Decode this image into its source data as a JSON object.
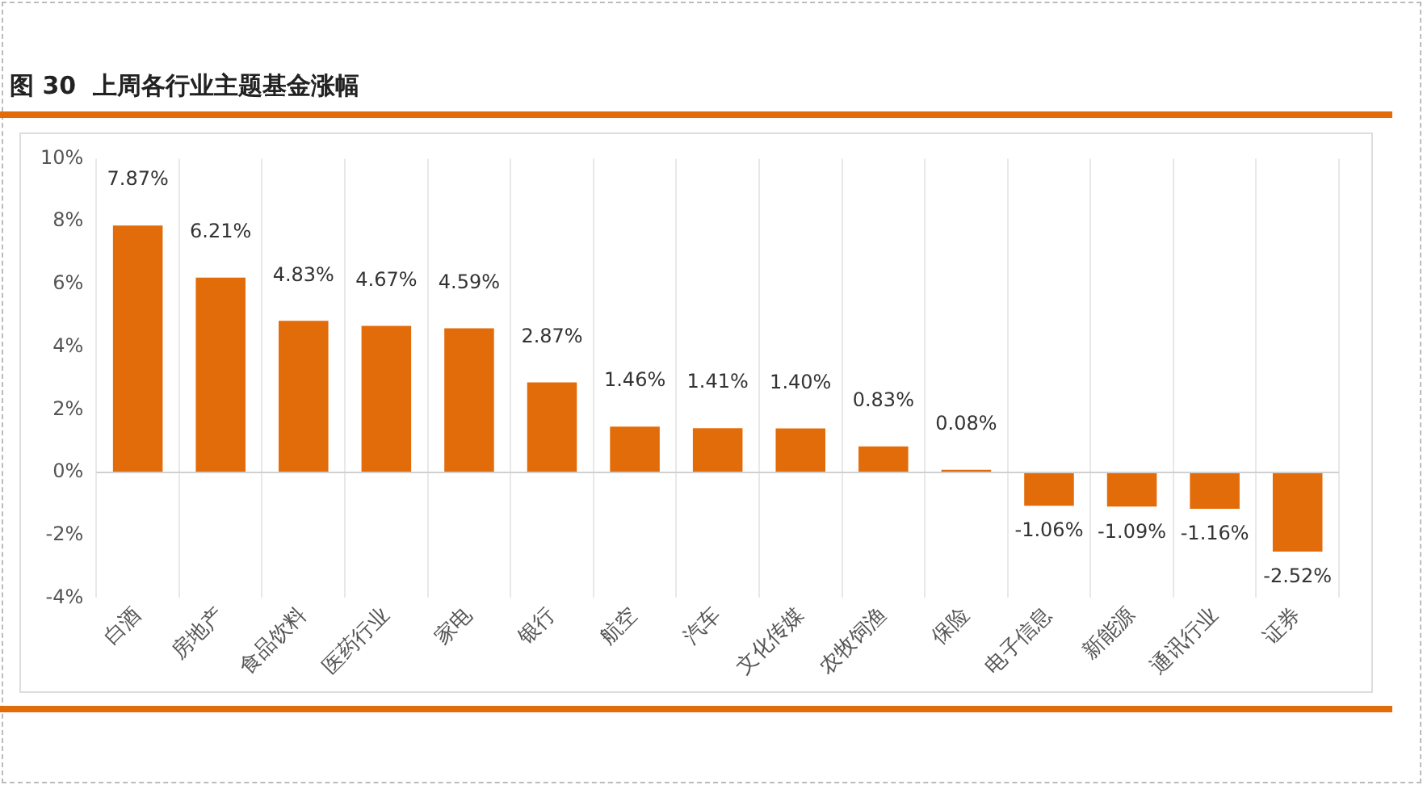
{
  "chart_data": {
    "type": "bar",
    "title": "图 30  上周各行业主题基金涨幅",
    "categories": [
      "白酒",
      "房地产",
      "食品饮料",
      "医药行业",
      "家电",
      "银行",
      "航空",
      "汽车",
      "文化传媒",
      "农牧饲渔",
      "保险",
      "电子信息",
      "新能源",
      "通讯行业",
      "证券"
    ],
    "values": [
      7.87,
      6.21,
      4.83,
      4.67,
      4.59,
      2.87,
      1.46,
      1.41,
      1.4,
      0.83,
      0.08,
      -1.06,
      -1.09,
      -1.16,
      -2.52
    ],
    "value_labels": [
      "7.87%",
      "6.21%",
      "4.83%",
      "4.67%",
      "4.59%",
      "2.87%",
      "1.46%",
      "1.41%",
      "1.40%",
      "0.83%",
      "0.08%",
      "-1.06%",
      "-1.09%",
      "-1.16%",
      "-2.52%"
    ],
    "color": "#e36c0a",
    "ylim": [
      -4,
      10
    ],
    "yticks": [
      {
        "value": -4,
        "label": "-4%"
      },
      {
        "value": -2,
        "label": "-2%"
      },
      {
        "value": 0,
        "label": "0%"
      },
      {
        "value": 2,
        "label": "2%"
      },
      {
        "value": 4,
        "label": "4%"
      },
      {
        "value": 6,
        "label": "6%"
      },
      {
        "value": 8,
        "label": "8%"
      },
      {
        "value": 10,
        "label": "10%"
      }
    ],
    "grid": "x",
    "legend": false
  }
}
